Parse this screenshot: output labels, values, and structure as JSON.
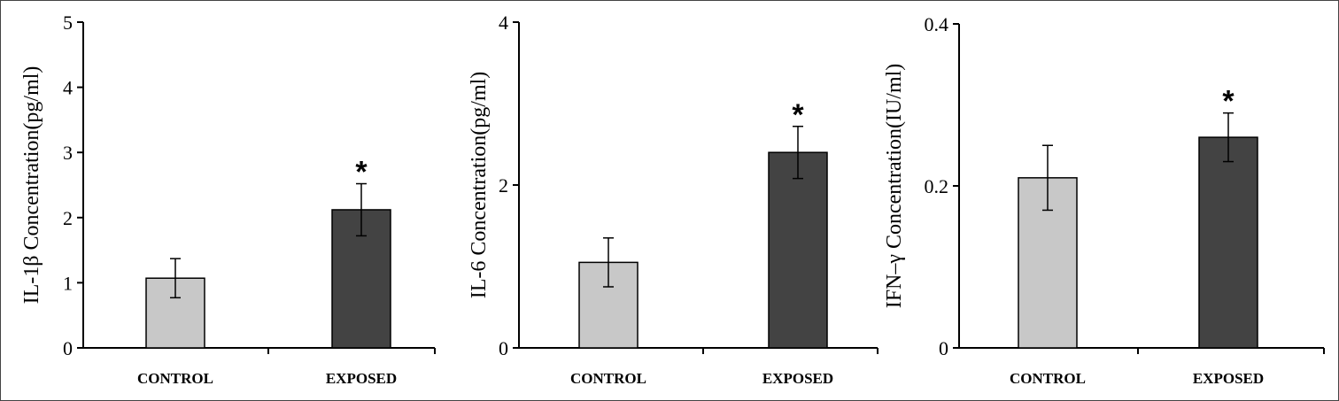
{
  "chart_data": [
    {
      "type": "bar",
      "ylabel": "IL-1β Concentration(pg/ml)",
      "categories": [
        "CONTROL",
        "EXPOSED"
      ],
      "values": [
        1.07,
        2.12
      ],
      "errors": [
        0.3,
        0.4
      ],
      "significance": [
        "",
        "*"
      ],
      "ylim": [
        0,
        5
      ],
      "yticks": [
        "0",
        "1",
        "2",
        "3",
        "4",
        "5"
      ],
      "colors": [
        "#c8c8c8",
        "#434343"
      ]
    },
    {
      "type": "bar",
      "ylabel": "IL-6 Concentration(pg/ml)",
      "categories": [
        "CONTROL",
        "EXPOSED"
      ],
      "values": [
        1.05,
        2.4
      ],
      "errors": [
        0.3,
        0.32
      ],
      "significance": [
        "",
        "*"
      ],
      "ylim": [
        0,
        4
      ],
      "yticks": [
        "0",
        "2",
        "4"
      ],
      "colors": [
        "#c8c8c8",
        "#434343"
      ]
    },
    {
      "type": "bar",
      "ylabel": "IFN–γ Concentration(IU/ml)",
      "categories": [
        "CONTROL",
        "EXPOSED"
      ],
      "values": [
        0.21,
        0.26
      ],
      "errors": [
        0.04,
        0.03
      ],
      "significance": [
        "",
        "*"
      ],
      "ylim": [
        0,
        0.4
      ],
      "yticks": [
        "0",
        "0.2",
        "0.4"
      ],
      "colors": [
        "#c8c8c8",
        "#434343"
      ]
    }
  ]
}
